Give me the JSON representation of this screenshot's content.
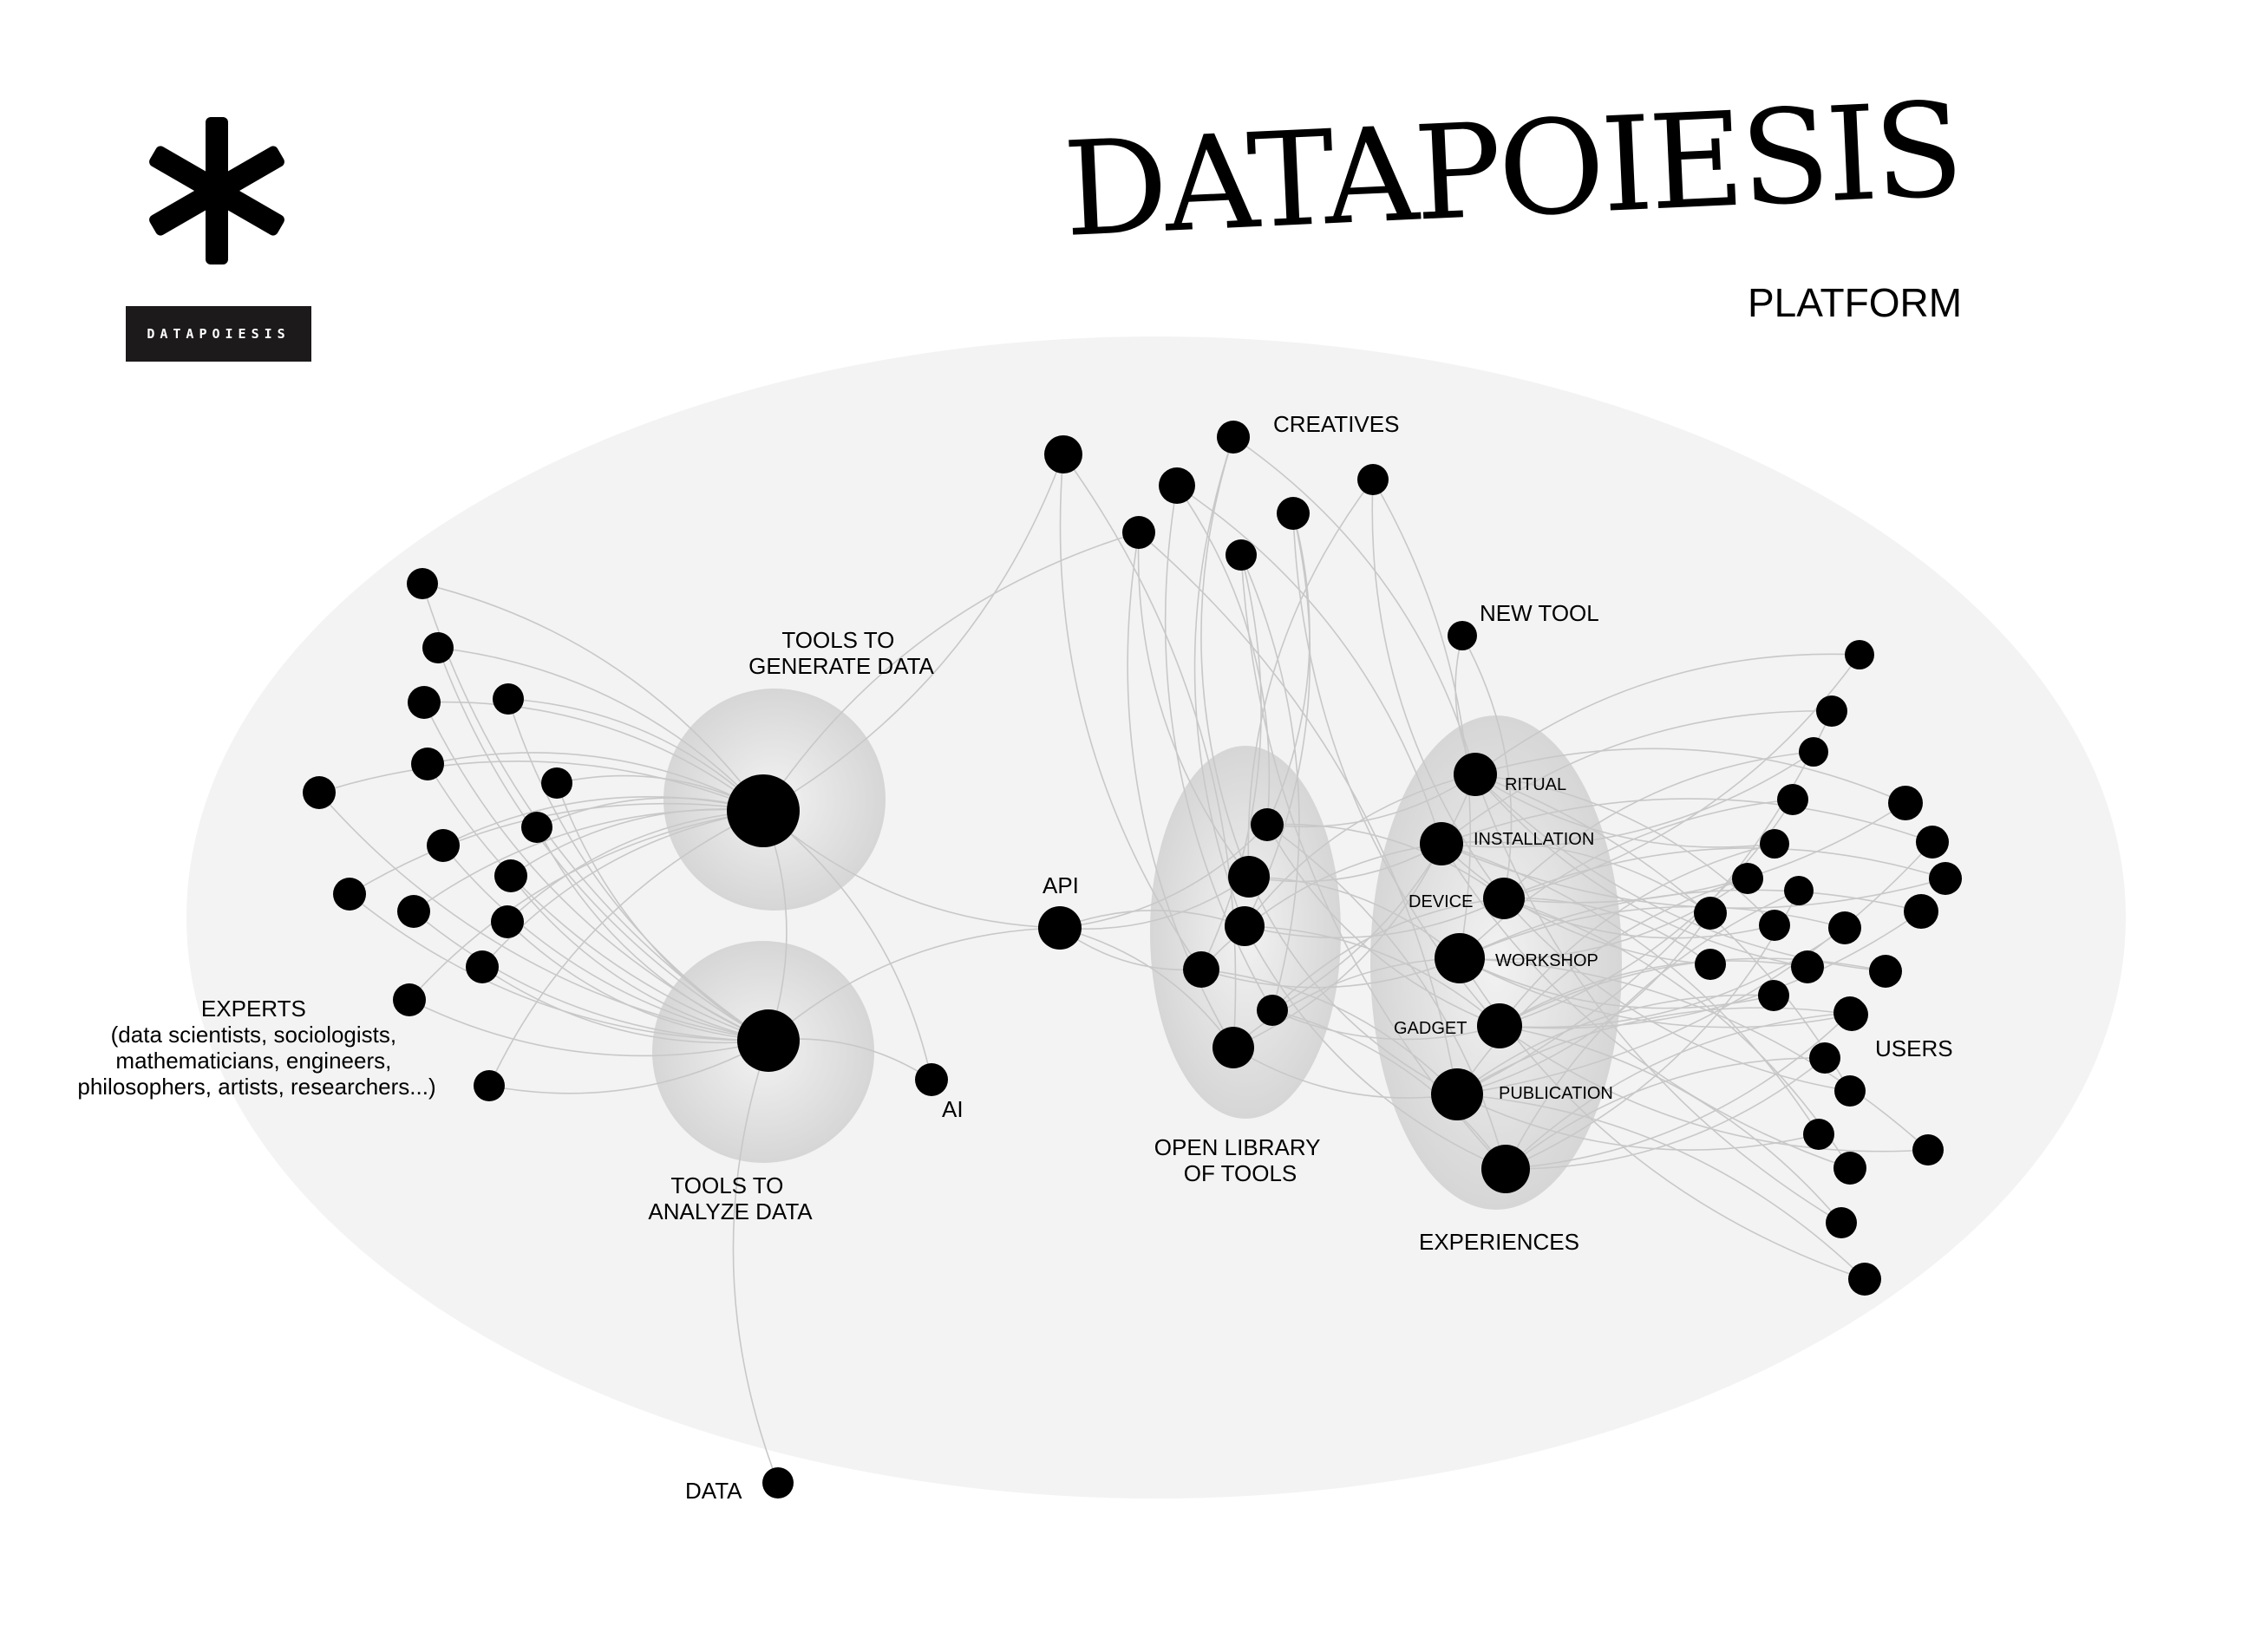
{
  "header": {
    "title": "DATAPOIESIS",
    "subtitle": "PLATFORM",
    "logo_text": "DATAPOIESIS",
    "logo_icon": "asterisk-icon"
  },
  "colors": {
    "background": "#ffffff",
    "platform_ellipse": "#f3f3f3",
    "cluster_fill": "#d8d8d8",
    "node": "#000000",
    "edge": "#c8c8c8",
    "logo_badge": "#1c1a1b"
  },
  "labels": {
    "tools_generate": [
      "TOOLS TO",
      "GENERATE DATA"
    ],
    "tools_analyze": [
      "TOOLS TO",
      "ANALYZE DATA"
    ],
    "experts": [
      "EXPERTS",
      "(data scientists, sociologists,",
      "mathematicians, engineers,",
      "philosophers, artists, researchers...)"
    ],
    "api": "API",
    "ai": "AI",
    "data": "DATA",
    "creatives": "CREATIVES",
    "new_tool": "NEW TOOL",
    "open_library": [
      "OPEN LIBRARY",
      "OF TOOLS"
    ],
    "experiences_title": "EXPERIENCES",
    "users": "USERS",
    "ritual": "RITUAL",
    "installation": "INSTALLATION",
    "device": "DEVICE",
    "workshop": "WORKSHOP",
    "gadget": "GADGET",
    "publication": "PUBLICATION"
  }
}
